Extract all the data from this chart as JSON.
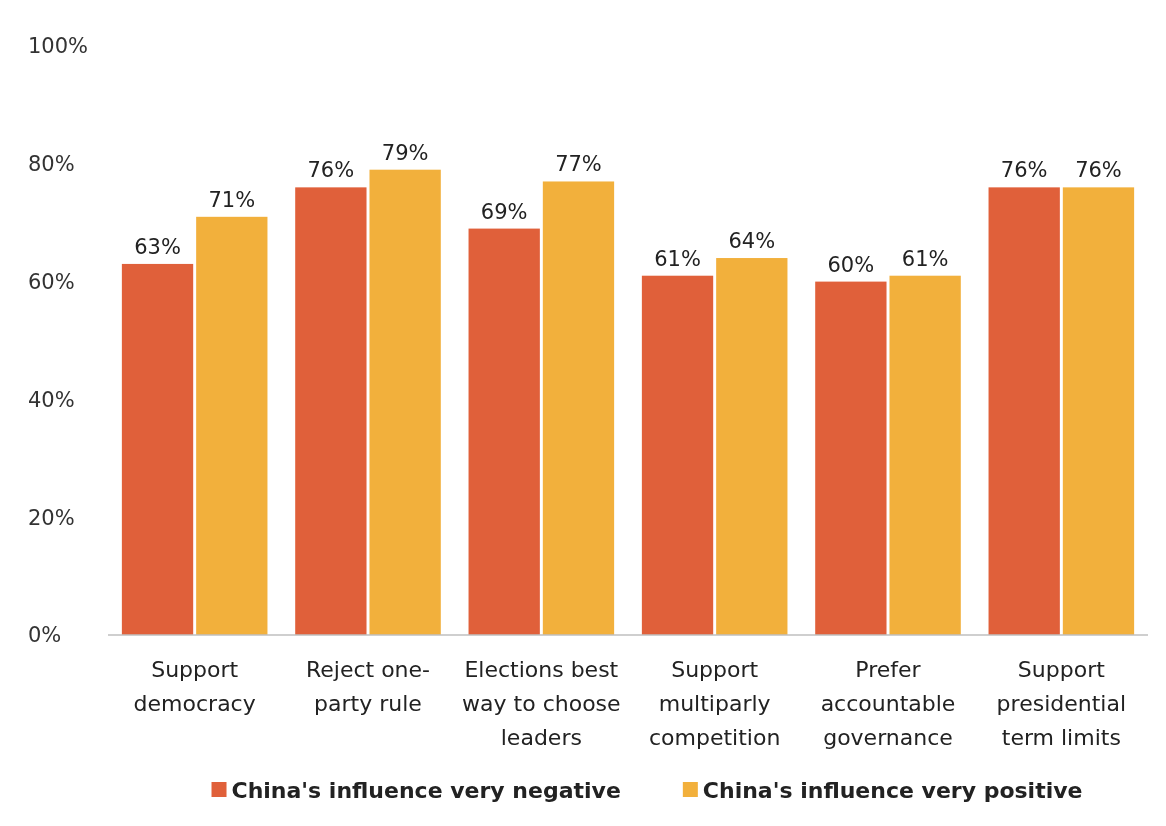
{
  "chart_data": {
    "type": "bar",
    "categories": [
      "Support democracy",
      "Reject one-party rule",
      "Elections best way to choose leaders",
      "Support multiparly competition",
      "Prefer accountable governance",
      "Support presidential term limits"
    ],
    "series": [
      {
        "name": "China's influence very negative",
        "color": "#e0603a",
        "values": [
          63,
          76,
          69,
          61,
          60,
          76
        ],
        "value_labels": [
          "63%",
          "76%",
          "69%",
          "61%",
          "60%",
          "76%"
        ]
      },
      {
        "name": "China's influence very positive",
        "color": "#f2b03c",
        "values": [
          71,
          79,
          77,
          64,
          61,
          76
        ],
        "value_labels": [
          "71%",
          "79%",
          "77%",
          "64%",
          "61%",
          "76%"
        ]
      }
    ],
    "ylim": [
      0,
      100
    ],
    "yticks": [
      {
        "value": 0,
        "label": "0%"
      },
      {
        "value": 20,
        "label": "20%"
      },
      {
        "value": 40,
        "label": "40%"
      },
      {
        "value": 60,
        "label": "60%"
      },
      {
        "value": 80,
        "label": "80%"
      },
      {
        "value": 100,
        "label": "100%"
      }
    ],
    "grid": false,
    "legend": "bottom"
  }
}
